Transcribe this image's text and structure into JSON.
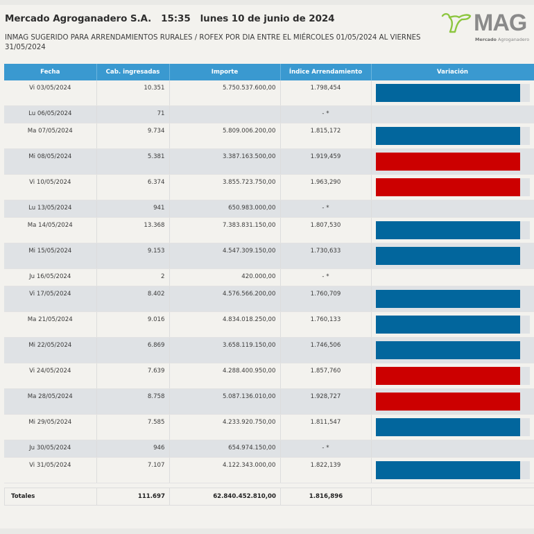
{
  "header": {
    "company": "Mercado Agroganadero S.A.",
    "time": "15:35",
    "date": "lunes 10 de junio de 2024",
    "subtitle": "INMAG SUGERIDO PARA ARRENDAMIENTOS RURALES / ROFEX POR DIA ENTRE EL MIÉRCOLES 01/05/2024 AL VIERNES 31/05/2024"
  },
  "logo": {
    "wordmark": "MAG",
    "tagline_bold": "Mercado",
    "tagline_rest": " Agroganadero",
    "colors": {
      "icon": "#8cc63f",
      "text": "#8a8a8a"
    }
  },
  "colors": {
    "header_bg": "#3a99d0",
    "bar_blue": "#02669d",
    "bar_red": "#cc0000",
    "bar_track": "#dfe2e5"
  },
  "table": {
    "columns": [
      "Fecha",
      "Cab. ingresadas",
      "Importe",
      "Índice Arrendamiento",
      "Variación"
    ],
    "rows": [
      {
        "fecha": "Vi 03/05/2024",
        "cab": "10.351",
        "importe": "5.750.537.600,00",
        "indice": "1.798,454",
        "variacion": "down",
        "fill": 0.94
      },
      {
        "fecha": "Lu 06/05/2024",
        "cab": "71",
        "importe": "",
        "indice": "- *",
        "variacion": null
      },
      {
        "fecha": "Ma 07/05/2024",
        "cab": "9.734",
        "importe": "5.809.006.200,00",
        "indice": "1.815,172",
        "variacion": "down",
        "fill": 0.94
      },
      {
        "fecha": "Mi 08/05/2024",
        "cab": "5.381",
        "importe": "3.387.163.500,00",
        "indice": "1.919,459",
        "variacion": "up",
        "fill": 0.94
      },
      {
        "fecha": "Vi 10/05/2024",
        "cab": "6.374",
        "importe": "3.855.723.750,00",
        "indice": "1.963,290",
        "variacion": "up",
        "fill": 0.94
      },
      {
        "fecha": "Lu 13/05/2024",
        "cab": "941",
        "importe": "650.983.000,00",
        "indice": "- *",
        "variacion": null
      },
      {
        "fecha": "Ma 14/05/2024",
        "cab": "13.368",
        "importe": "7.383.831.150,00",
        "indice": "1.807,530",
        "variacion": "down",
        "fill": 0.94
      },
      {
        "fecha": "Mi 15/05/2024",
        "cab": "9.153",
        "importe": "4.547.309.150,00",
        "indice": "1.730,633",
        "variacion": "down",
        "fill": 0.94
      },
      {
        "fecha": "Ju 16/05/2024",
        "cab": "2",
        "importe": "420.000,00",
        "indice": "- *",
        "variacion": null
      },
      {
        "fecha": "Vi 17/05/2024",
        "cab": "8.402",
        "importe": "4.576.566.200,00",
        "indice": "1.760,709",
        "variacion": "down",
        "fill": 0.94
      },
      {
        "fecha": "Ma 21/05/2024",
        "cab": "9.016",
        "importe": "4.834.018.250,00",
        "indice": "1.760,133",
        "variacion": "down",
        "fill": 0.94
      },
      {
        "fecha": "Mi 22/05/2024",
        "cab": "6.869",
        "importe": "3.658.119.150,00",
        "indice": "1.746,506",
        "variacion": "down",
        "fill": 0.94
      },
      {
        "fecha": "Vi 24/05/2024",
        "cab": "7.639",
        "importe": "4.288.400.950,00",
        "indice": "1.857,760",
        "variacion": "up",
        "fill": 0.94
      },
      {
        "fecha": "Ma 28/05/2024",
        "cab": "8.758",
        "importe": "5.087.136.010,00",
        "indice": "1.928,727",
        "variacion": "up",
        "fill": 0.94
      },
      {
        "fecha": "Mi 29/05/2024",
        "cab": "7.585",
        "importe": "4.233.920.750,00",
        "indice": "1.811,547",
        "variacion": "down",
        "fill": 0.94
      },
      {
        "fecha": "Ju 30/05/2024",
        "cab": "946",
        "importe": "654.974.150,00",
        "indice": "- *",
        "variacion": null
      },
      {
        "fecha": "Vi 31/05/2024",
        "cab": "7.107",
        "importe": "4.122.343.000,00",
        "indice": "1.822,139",
        "variacion": "down",
        "fill": 0.94
      }
    ],
    "totals": {
      "label": "Totales",
      "cab": "111.697",
      "importe": "62.840.452.810,00",
      "indice": "1.816,896"
    }
  }
}
